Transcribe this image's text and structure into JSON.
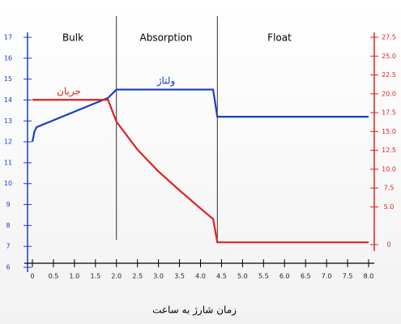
{
  "chart_data": {
    "type": "line",
    "xlabel": "زمان شارژ به ساعت",
    "phases": [
      "Bulk",
      "Absorption",
      "Float"
    ],
    "phase_boundaries": [
      2.0,
      4.4
    ],
    "series": [
      {
        "name": "ولتاژ",
        "color": "#1a3dc4",
        "axis": "y",
        "x": [
          0,
          0.05,
          0.1,
          1.8,
          2.0,
          4.3,
          4.4,
          8.0
        ],
        "values": [
          12.0,
          12.5,
          12.7,
          14.1,
          14.5,
          14.5,
          13.2,
          13.2
        ]
      },
      {
        "name": "جریان",
        "color": "#e02020",
        "axis": "y2",
        "x": [
          0,
          1.8,
          2.0,
          2.5,
          3.0,
          3.5,
          4.0,
          4.3,
          4.4,
          8.0
        ],
        "values": [
          19.2,
          19.2,
          16.3,
          12.6,
          9.7,
          7.2,
          4.8,
          3.4,
          0.3,
          0.3
        ]
      }
    ],
    "xlim": [
      0,
      8
    ],
    "xticks": [
      0,
      0.5,
      {
        "value": 1,
        "label": "1.0"
      },
      1.5,
      {
        "value": 2,
        "label": "2.0"
      },
      2.5,
      {
        "value": 3,
        "label": "3.0"
      },
      3.5,
      {
        "value": 4,
        "label": "4.0"
      },
      4.5,
      {
        "value": 5,
        "label": "5.0"
      },
      5.5,
      {
        "value": 6,
        "label": "6.0"
      },
      6.5,
      {
        "value": 7,
        "label": "7.0"
      },
      7.5,
      {
        "value": 8,
        "label": "8.0"
      }
    ],
    "ylim": [
      6,
      17
    ],
    "yticks": [
      6,
      7,
      8,
      9,
      10,
      11,
      12,
      13,
      14,
      15,
      16,
      17
    ],
    "y2lim": [
      0,
      27.5
    ],
    "y2ticks": [
      0,
      {
        "value": 5,
        "label": "5.0"
      },
      7.5,
      {
        "value": 10,
        "label": "10.0"
      },
      12.5,
      {
        "value": 15,
        "label": "15.0"
      },
      17.5,
      {
        "value": 20,
        "label": "20.0"
      },
      22.5,
      {
        "value": 25,
        "label": "25.0"
      },
      27.5
    ]
  }
}
